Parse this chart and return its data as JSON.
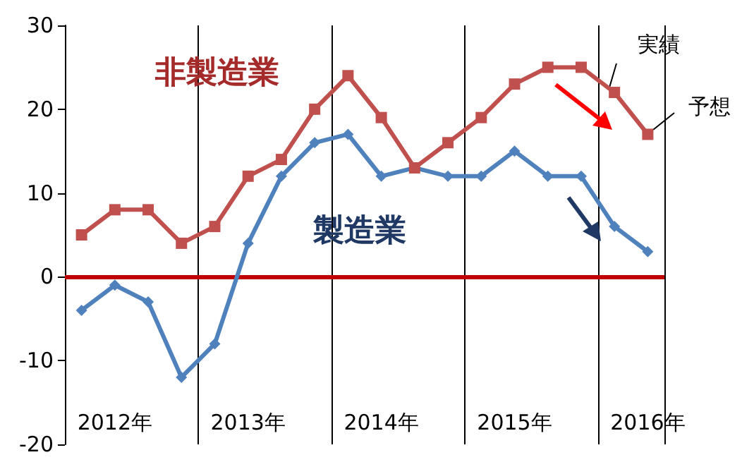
{
  "chart_data": {
    "type": "line",
    "categories": [
      null,
      "2012年",
      null,
      null,
      null,
      "2013年",
      null,
      null,
      null,
      "2014年",
      null,
      null,
      null,
      "2015年",
      null,
      null,
      null,
      "2016年"
    ],
    "series": [
      {
        "name": "非製造業",
        "color": "#c0504d",
        "marker": "square",
        "values": [
          5,
          8,
          8,
          4,
          6,
          12,
          14,
          20,
          24,
          19,
          13,
          16,
          19,
          23,
          25,
          25,
          22,
          17
        ]
      },
      {
        "name": "製造業",
        "color": "#4f81bd",
        "marker": "diamond",
        "values": [
          -4,
          -1,
          -3,
          -12,
          -8,
          4,
          12,
          16,
          17,
          12,
          13,
          12,
          12,
          15,
          12,
          12,
          6,
          3
        ]
      }
    ],
    "ylim": [
      -20,
      30
    ],
    "yticks": [
      -20,
      -10,
      0,
      10,
      20,
      30
    ],
    "grid": "x",
    "legend": "top left",
    "ref_lines": [
      {
        "axis": "y",
        "value": 0,
        "color": "#c00000"
      }
    ],
    "annotations": [
      "実績",
      "予想"
    ]
  }
}
